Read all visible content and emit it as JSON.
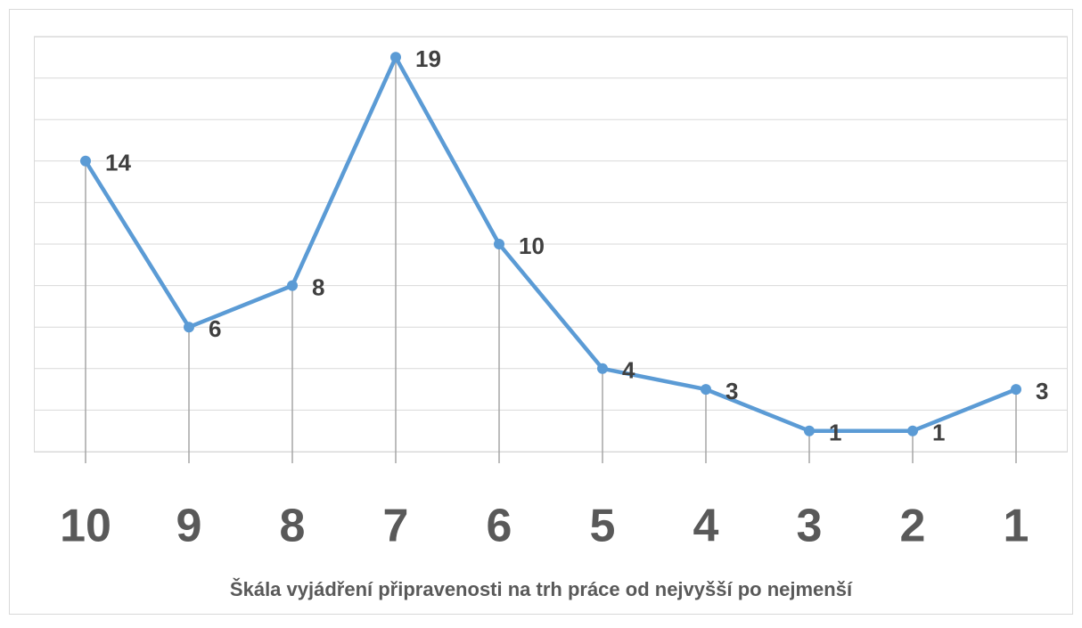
{
  "chart_data": {
    "type": "line",
    "categories": [
      "10",
      "9",
      "8",
      "7",
      "6",
      "5",
      "4",
      "3",
      "2",
      "1"
    ],
    "series": [
      {
        "color": "#5b9bd5",
        "values": [
          14,
          6,
          8,
          19,
          10,
          4,
          3,
          1,
          1,
          3
        ]
      }
    ],
    "x_label": "Škála vyjádření připravenosti na trh práce  od nejvyšší po nejmenší",
    "ylim": [
      0,
      20
    ],
    "yticks": [
      0,
      2,
      4,
      6,
      8,
      10,
      12,
      14,
      16,
      18,
      20
    ],
    "grid": true
  }
}
